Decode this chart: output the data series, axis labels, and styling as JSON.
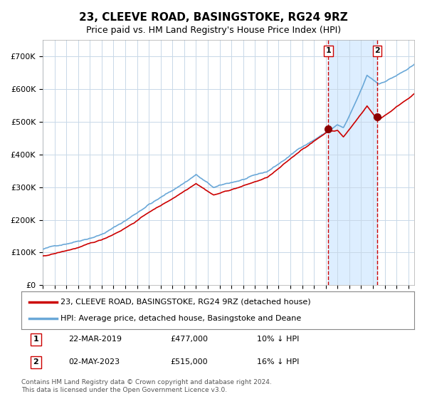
{
  "title": "23, CLEEVE ROAD, BASINGSTOKE, RG24 9RZ",
  "subtitle": "Price paid vs. HM Land Registry's House Price Index (HPI)",
  "legend_line1": "23, CLEEVE ROAD, BASINGSTOKE, RG24 9RZ (detached house)",
  "legend_line2": "HPI: Average price, detached house, Basingstoke and Deane",
  "sale1_date": "22-MAR-2019",
  "sale1_price": 477000,
  "sale1_label": "10% ↓ HPI",
  "sale2_date": "02-MAY-2023",
  "sale2_price": 515000,
  "sale2_label": "16% ↓ HPI",
  "footnote1": "Contains HM Land Registry data © Crown copyright and database right 2024.",
  "footnote2": "This data is licensed under the Open Government Licence v3.0.",
  "hpi_color": "#6aa8d8",
  "price_color": "#cc0000",
  "marker_color": "#8b0000",
  "background_color": "#ffffff",
  "grid_color": "#c8d8e8",
  "highlight_color": "#ddeeff",
  "vline_color": "#cc0000",
  "ylim": [
    0,
    750000
  ],
  "yticks": [
    0,
    100000,
    200000,
    300000,
    400000,
    500000,
    600000,
    700000
  ],
  "start_year": 1995,
  "end_year": 2026
}
